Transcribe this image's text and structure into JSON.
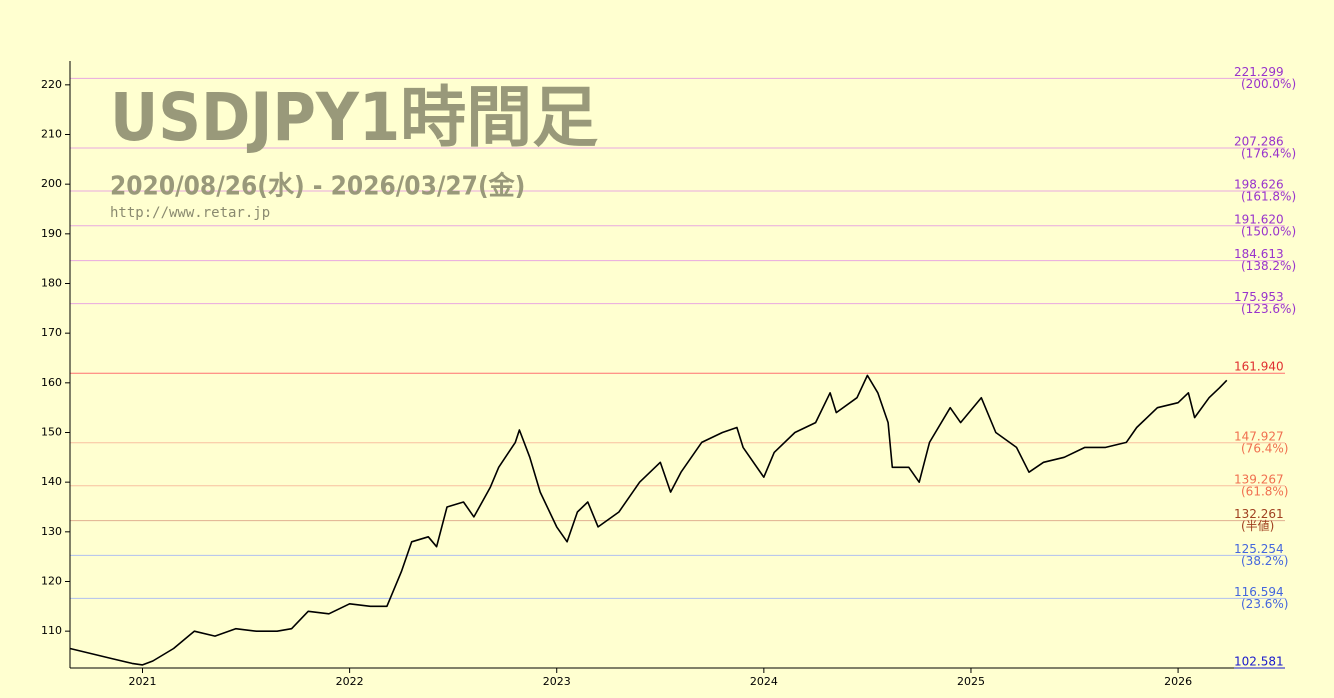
{
  "chart_data": {
    "type": "line",
    "title": "USDJPY1時間足",
    "subtitle": "2020/08/26(水) - 2026/03/27(金)",
    "source": "http://www.retar.jp",
    "xlim": [
      2020.65,
      2026.27
    ],
    "xticks": [
      2021,
      2022,
      2023,
      2024,
      2025,
      2026
    ],
    "ylim": [
      102.581,
      224.8
    ],
    "yticks": [
      110,
      120,
      130,
      140,
      150,
      160,
      170,
      180,
      190,
      200,
      210,
      220
    ],
    "series": [
      {
        "color": "#000000",
        "x": [
          2020.65,
          2020.75,
          2020.85,
          2020.95,
          2021.0,
          2021.05,
          2021.15,
          2021.25,
          2021.35,
          2021.45,
          2021.55,
          2021.65,
          2021.72,
          2021.8,
          2021.9,
          2022.0,
          2022.1,
          2022.18,
          2022.25,
          2022.3,
          2022.38,
          2022.42,
          2022.47,
          2022.55,
          2022.6,
          2022.68,
          2022.72,
          2022.8,
          2022.82,
          2022.87,
          2022.92,
          2023.0,
          2023.05,
          2023.1,
          2023.15,
          2023.2,
          2023.3,
          2023.4,
          2023.5,
          2023.55,
          2023.6,
          2023.7,
          2023.8,
          2023.87,
          2023.9,
          2024.0,
          2024.05,
          2024.15,
          2024.25,
          2024.32,
          2024.35,
          2024.45,
          2024.5,
          2024.55,
          2024.6,
          2024.62,
          2024.7,
          2024.75,
          2024.8,
          2024.9,
          2024.95,
          2025.05,
          2025.12,
          2025.22,
          2025.28,
          2025.35,
          2025.45,
          2025.55,
          2025.65,
          2025.75,
          2025.8,
          2025.9,
          2026.0,
          2026.05,
          2026.08,
          2026.15,
          2026.2,
          2026.235
        ],
        "values": [
          106.5,
          105.5,
          104.5,
          103.5,
          103.2,
          104,
          106.5,
          110,
          109,
          110.5,
          110,
          110,
          110.5,
          114,
          113.5,
          115.5,
          115,
          115,
          122,
          128,
          129,
          127,
          135,
          136,
          133,
          139,
          143,
          148,
          150.5,
          145,
          138,
          131,
          128,
          134,
          136,
          131,
          134,
          140,
          144,
          138,
          142,
          148,
          150,
          151,
          147,
          141,
          146,
          150,
          152,
          158,
          154,
          157,
          161.5,
          158,
          152,
          143,
          143,
          140,
          148,
          155,
          152,
          157,
          150,
          147,
          142,
          144,
          145,
          147,
          147,
          148,
          151,
          155,
          156,
          158,
          153,
          157,
          159,
          160.5
        ]
      }
    ],
    "levels": [
      {
        "value": 221.299,
        "label": "221.299",
        "ratio": "(200.0%)",
        "color": "#9933cc",
        "line": "#e8a8e0"
      },
      {
        "value": 207.286,
        "label": "207.286",
        "ratio": "(176.4%)",
        "color": "#9933cc",
        "line": "#e8a8e0"
      },
      {
        "value": 198.626,
        "label": "198.626",
        "ratio": "(161.8%)",
        "color": "#9933cc",
        "line": "#e8a8e0"
      },
      {
        "value": 191.62,
        "label": "191.620",
        "ratio": "(150.0%)",
        "color": "#9933cc",
        "line": "#e8a8e0"
      },
      {
        "value": 184.613,
        "label": "184.613",
        "ratio": "(138.2%)",
        "color": "#9933cc",
        "line": "#e8a8e0"
      },
      {
        "value": 175.953,
        "label": "175.953",
        "ratio": "(123.6%)",
        "color": "#9933cc",
        "line": "#e8a8e0"
      },
      {
        "value": 161.94,
        "label": "161.940",
        "color": "#e03030",
        "line": "#ff7070"
      },
      {
        "value": 147.927,
        "label": "147.927",
        "ratio": "(76.4%)",
        "color": "#f07050",
        "line": "#f8c0a0"
      },
      {
        "value": 139.267,
        "label": "139.267",
        "ratio": "(61.8%)",
        "color": "#f07050",
        "line": "#f8c0a0"
      },
      {
        "value": 132.261,
        "label": "132.261",
        "ratio": "(半値)",
        "color": "#a04020",
        "line": "#e0b090"
      },
      {
        "value": 125.254,
        "label": "125.254",
        "ratio": "(38.2%)",
        "color": "#4466dd",
        "line": "#b0c0f0"
      },
      {
        "value": 116.594,
        "label": "116.594",
        "ratio": "(23.6%)",
        "color": "#4466dd",
        "line": "#b0c0f0"
      },
      {
        "value": 102.581,
        "label": "102.581",
        "color": "#1a1acc",
        "line": "#1a1acc"
      }
    ]
  }
}
